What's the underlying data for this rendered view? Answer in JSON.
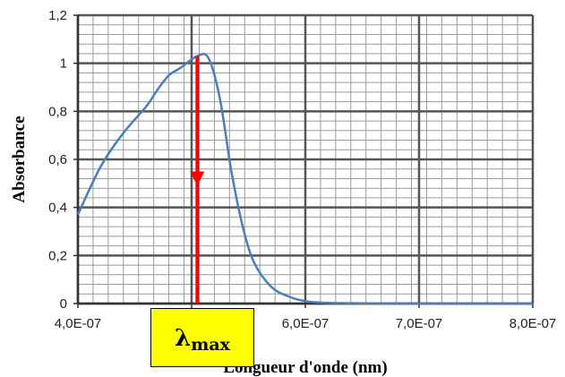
{
  "chart_data": {
    "type": "line",
    "title": "",
    "xlabel": "Longueur d'onde (nm)",
    "ylabel": "Absorbance",
    "xlim": [
      4e-07,
      8e-07
    ],
    "ylim": [
      0,
      1.2
    ],
    "x_ticks": [
      "4,0E-07",
      "5,0E-07",
      "6,0E-07",
      "7,0E-07",
      "8,0E-07"
    ],
    "y_ticks": [
      "0",
      "0,2",
      "0,4",
      "0,6",
      "0,8",
      "1",
      "1,2"
    ],
    "x_tick_values": [
      4e-07,
      5e-07,
      6e-07,
      7e-07,
      8e-07
    ],
    "y_tick_values": [
      0,
      0.2,
      0.4,
      0.6,
      0.8,
      1.0,
      1.2
    ],
    "grid": true,
    "legend": "none",
    "series": [
      {
        "color": "#4a7ebb",
        "x": [
          4e-07,
          4.2e-07,
          4.4e-07,
          4.6e-07,
          4.7e-07,
          4.8e-07,
          4.9e-07,
          5.05e-07,
          5.15e-07,
          5.25e-07,
          5.35e-07,
          5.45e-07,
          5.55e-07,
          5.7e-07,
          5.85e-07,
          6e-07,
          6.2e-07,
          6.5e-07,
          7e-07,
          8e-07
        ],
        "y": [
          0.37,
          0.57,
          0.71,
          0.82,
          0.89,
          0.95,
          0.98,
          1.03,
          1.02,
          0.85,
          0.55,
          0.32,
          0.17,
          0.07,
          0.03,
          0.01,
          0.003,
          0.001,
          0.0,
          0.0
        ]
      }
    ],
    "annotation": {
      "label_symbol": "λ",
      "label_sub": "max",
      "x": 5.05e-07,
      "y_top": 1.03,
      "y_bottom": 0,
      "arrow_color": "#ff0000",
      "box_color": "#ffff00"
    }
  }
}
